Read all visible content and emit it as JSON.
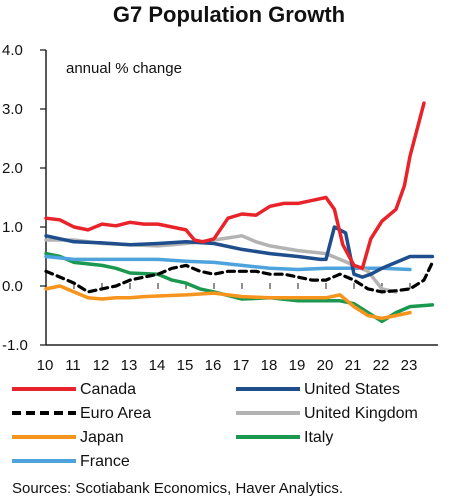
{
  "chart_data": {
    "type": "line",
    "title": "G7 Population Growth",
    "annotation": "annual % change",
    "source": "Sources: Scotiabank Economics, Haver Analytics.",
    "ylim": [
      -1.0,
      4.0
    ],
    "y_ticks": [
      "-1.0",
      "0.0",
      "1.0",
      "2.0",
      "3.0",
      "4.0"
    ],
    "y_tick_values": [
      -1.0,
      0.0,
      1.0,
      2.0,
      3.0,
      4.0
    ],
    "xlim": [
      2010,
      2024
    ],
    "x_ticks": [
      "10",
      "11",
      "12",
      "13",
      "14",
      "15",
      "16",
      "17",
      "18",
      "19",
      "20",
      "21",
      "22",
      "23"
    ],
    "x_tick_values": [
      2010,
      2011,
      2012,
      2013,
      2014,
      2015,
      2016,
      2017,
      2018,
      2019,
      2020,
      2021,
      2022,
      2023
    ],
    "grid": false,
    "legend_position": "bottom",
    "series": [
      {
        "name": "Canada",
        "color": "#e8232a",
        "dash": "solid",
        "x": [
          2010,
          2010.5,
          2011,
          2011.5,
          2012,
          2012.5,
          2013,
          2013.5,
          2014,
          2014.5,
          2015,
          2015.3,
          2015.6,
          2016,
          2016.5,
          2017,
          2017.5,
          2018,
          2018.5,
          2019,
          2019.5,
          2020,
          2020.3,
          2020.6,
          2021,
          2021.3,
          2021.6,
          2022,
          2022.5,
          2022.8,
          2023,
          2023.5
        ],
        "y": [
          1.15,
          1.12,
          1.0,
          0.95,
          1.05,
          1.02,
          1.08,
          1.05,
          1.05,
          1.0,
          0.95,
          0.78,
          0.75,
          0.8,
          1.15,
          1.22,
          1.2,
          1.35,
          1.4,
          1.4,
          1.45,
          1.5,
          1.3,
          0.7,
          0.35,
          0.3,
          0.8,
          1.1,
          1.3,
          1.7,
          2.2,
          3.1
        ]
      },
      {
        "name": "United States",
        "color": "#1f4e8c",
        "dash": "solid",
        "x": [
          2010,
          2011,
          2012,
          2013,
          2014,
          2015,
          2016,
          2017,
          2018,
          2019,
          2019.8,
          2020,
          2020.3,
          2020.7,
          2021,
          2021.3,
          2021.6,
          2022,
          2022.5,
          2023,
          2023.8
        ],
        "y": [
          0.85,
          0.75,
          0.73,
          0.7,
          0.72,
          0.75,
          0.72,
          0.62,
          0.55,
          0.5,
          0.45,
          0.45,
          1.0,
          0.9,
          0.2,
          0.15,
          0.2,
          0.3,
          0.4,
          0.5,
          0.5
        ]
      },
      {
        "name": "Euro Area",
        "color": "#000000",
        "dash": "dashed",
        "x": [
          2010,
          2010.5,
          2011,
          2011.5,
          2012,
          2012.5,
          2013,
          2013.5,
          2014,
          2014.5,
          2015,
          2015.5,
          2016,
          2016.5,
          2017,
          2017.5,
          2018,
          2018.5,
          2019,
          2019.5,
          2020,
          2020.5,
          2021,
          2021.5,
          2022,
          2022.5,
          2023,
          2023.5,
          2023.8
        ],
        "y": [
          0.25,
          0.15,
          0.05,
          -0.1,
          -0.05,
          0.0,
          0.1,
          0.15,
          0.2,
          0.3,
          0.35,
          0.25,
          0.2,
          0.25,
          0.25,
          0.25,
          0.2,
          0.2,
          0.15,
          0.1,
          0.1,
          0.2,
          0.1,
          -0.05,
          -0.1,
          -0.08,
          -0.05,
          0.1,
          0.4
        ]
      },
      {
        "name": "United Kingdom",
        "color": "#b3b3b3",
        "dash": "solid",
        "x": [
          2010,
          2011,
          2012,
          2013,
          2014,
          2015,
          2016,
          2017,
          2017.5,
          2018,
          2019,
          2020,
          2020.5,
          2021,
          2021.5,
          2022,
          2022.5
        ],
        "y": [
          0.78,
          0.78,
          0.72,
          0.7,
          0.68,
          0.72,
          0.78,
          0.85,
          0.75,
          0.68,
          0.6,
          0.55,
          0.45,
          0.35,
          0.25,
          -0.05,
          -0.1
        ]
      },
      {
        "name": "Japan",
        "color": "#f7941d",
        "dash": "solid",
        "x": [
          2010,
          2010.5,
          2011,
          2011.5,
          2012,
          2012.5,
          2013,
          2013.5,
          2014,
          2015,
          2016,
          2017,
          2018,
          2019,
          2020,
          2020.5,
          2021,
          2021.5,
          2022,
          2022.5,
          2023
        ],
        "y": [
          -0.05,
          0.0,
          -0.1,
          -0.2,
          -0.22,
          -0.2,
          -0.2,
          -0.18,
          -0.17,
          -0.15,
          -0.12,
          -0.18,
          -0.2,
          -0.2,
          -0.2,
          -0.15,
          -0.35,
          -0.5,
          -0.55,
          -0.5,
          -0.45
        ]
      },
      {
        "name": "Italy",
        "color": "#1a9850",
        "dash": "solid",
        "x": [
          2010,
          2010.5,
          2011,
          2012,
          2012.5,
          2013,
          2014,
          2014.5,
          2015,
          2015.5,
          2016,
          2017,
          2018,
          2019,
          2020,
          2020.5,
          2021,
          2021.5,
          2022,
          2022.5,
          2023,
          2023.8
        ],
        "y": [
          0.55,
          0.5,
          0.4,
          0.35,
          0.3,
          0.22,
          0.2,
          0.1,
          0.05,
          -0.05,
          -0.1,
          -0.22,
          -0.2,
          -0.25,
          -0.25,
          -0.25,
          -0.3,
          -0.45,
          -0.6,
          -0.45,
          -0.35,
          -0.32
        ]
      },
      {
        "name": "France",
        "color": "#4ea3dc",
        "dash": "solid",
        "x": [
          2010,
          2011,
          2012,
          2013,
          2014,
          2015,
          2016,
          2017,
          2018,
          2019,
          2020,
          2021,
          2022,
          2023
        ],
        "y": [
          0.5,
          0.45,
          0.45,
          0.45,
          0.45,
          0.42,
          0.4,
          0.35,
          0.3,
          0.28,
          0.3,
          0.3,
          0.3,
          0.28
        ]
      }
    ]
  }
}
